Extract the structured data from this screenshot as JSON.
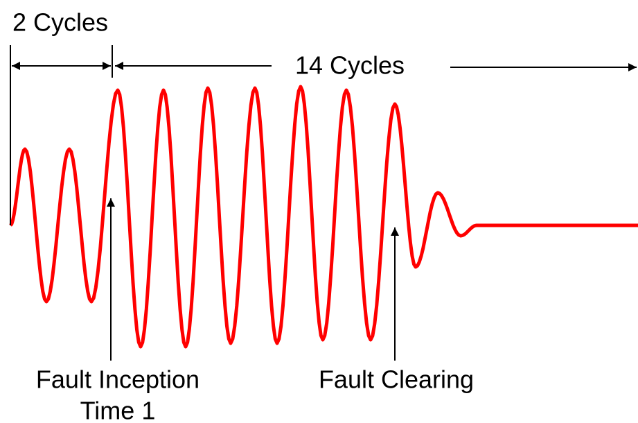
{
  "labels": {
    "two_cycles": "2 Cycles",
    "fourteen_cycles": "14 Cycles",
    "fault_inception": {
      "line1": "Fault Inception",
      "line2": "Time 1"
    },
    "fault_clearing": "Fault Clearing"
  }
}
